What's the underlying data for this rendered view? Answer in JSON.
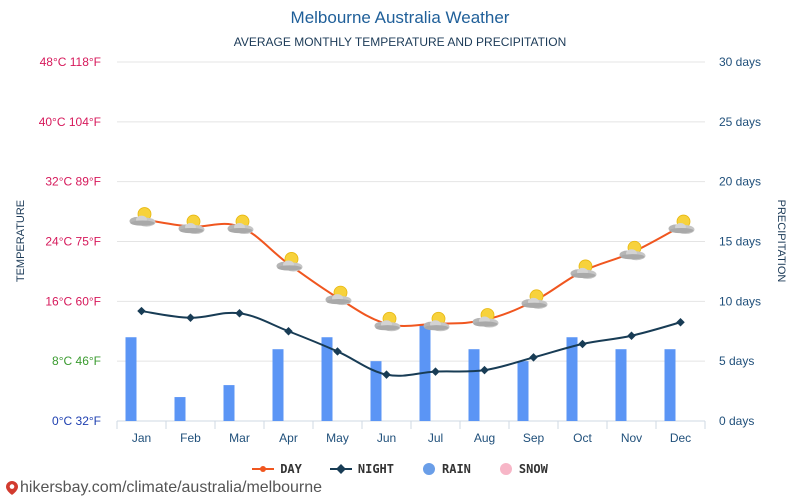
{
  "header": {
    "title": "Melbourne Australia Weather",
    "subtitle": "AVERAGE MONTHLY TEMPERATURE AND PRECIPITATION"
  },
  "footer": {
    "source": "hikersbay.com/climate/australia/melbourne"
  },
  "chart_data": {
    "type": "line",
    "categories": [
      "Jan",
      "Feb",
      "Mar",
      "Apr",
      "May",
      "Jun",
      "Jul",
      "Aug",
      "Sep",
      "Oct",
      "Nov",
      "Dec"
    ],
    "ylabel_left": "TEMPERATURE",
    "ylabel_right": "PRECIPITATION",
    "y_left": {
      "min": 0,
      "max": 48,
      "ticks": [
        {
          "value": 48,
          "label": "48°C 118°F",
          "color": "#d6195b"
        },
        {
          "value": 40,
          "label": "40°C 104°F",
          "color": "#d6195b"
        },
        {
          "value": 32,
          "label": "32°C 89°F",
          "color": "#d6195b"
        },
        {
          "value": 24,
          "label": "24°C 75°F",
          "color": "#d6195b"
        },
        {
          "value": 16,
          "label": "16°C 60°F",
          "color": "#d6195b"
        },
        {
          "value": 8,
          "label": "8°C 46°F",
          "color": "#3a9b2f"
        },
        {
          "value": 0,
          "label": "0°C 32°F",
          "color": "#1e3fb0"
        }
      ]
    },
    "y_right": {
      "min": 0,
      "max": 30,
      "ticks": [
        {
          "value": 30,
          "label": "30 days"
        },
        {
          "value": 25,
          "label": "25 days"
        },
        {
          "value": 20,
          "label": "20 days"
        },
        {
          "value": 15,
          "label": "15 days"
        },
        {
          "value": 10,
          "label": "10 days"
        },
        {
          "value": 5,
          "label": "5 days"
        },
        {
          "value": 0,
          "label": "0 days"
        }
      ]
    },
    "series": [
      {
        "name": "DAY",
        "type": "line",
        "color": "#f0561f",
        "values": [
          27,
          26,
          26,
          21,
          16.5,
          13,
          13,
          13.5,
          16,
          20,
          22.5,
          26
        ]
      },
      {
        "name": "NIGHT",
        "type": "line",
        "color": "#183c55",
        "values": [
          14.7,
          13.8,
          14.4,
          12,
          9.3,
          6.2,
          6.6,
          6.8,
          8.5,
          10.3,
          11.4,
          13.2
        ]
      },
      {
        "name": "RAIN",
        "type": "bar",
        "color": "#5b95f5",
        "values": [
          7,
          2,
          3,
          6,
          7,
          5,
          8,
          6,
          5,
          7,
          6,
          6
        ]
      },
      {
        "name": "SNOW",
        "type": "bar",
        "color": "#f7b6c7",
        "values": [
          0,
          0,
          0,
          0,
          0,
          0,
          0,
          0,
          0,
          0,
          0,
          0
        ]
      }
    ],
    "grid": true,
    "legend_position": "bottom",
    "weather_icon": "partly-cloudy-icon"
  }
}
